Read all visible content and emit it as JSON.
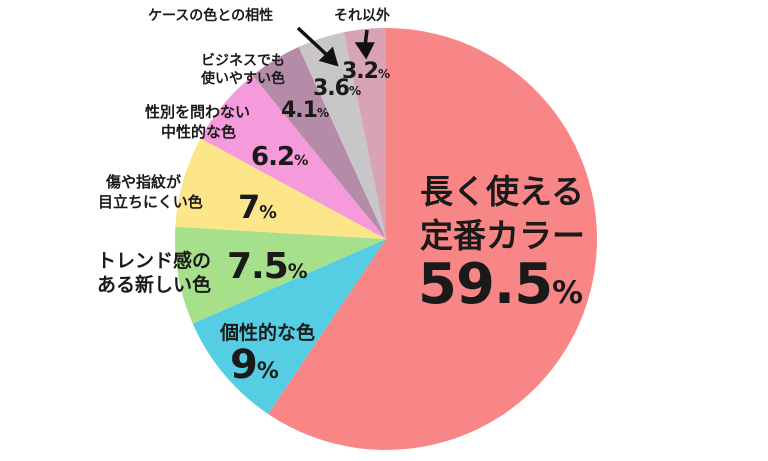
{
  "chart_data": {
    "type": "pie",
    "title": "",
    "start_angle_deg": 0,
    "direction": "clockwise",
    "slices": [
      {
        "label": "長く使える定番カラー",
        "lines": [
          "長く使える",
          "定番カラー"
        ],
        "value": 59.5,
        "value_text": "59.5",
        "color": "#f98686"
      },
      {
        "label": "個性的な色",
        "lines": [
          "個性的な色"
        ],
        "value": 9,
        "value_text": "9",
        "color": "#55cde3"
      },
      {
        "label": "トレンド感のある新しい色",
        "lines": [
          "トレンド感の",
          "ある新しい色"
        ],
        "value": 7.5,
        "value_text": "7.5",
        "color": "#a7e08a"
      },
      {
        "label": "傷や指紋が目立ちにくい色",
        "lines": [
          "傷や指紋が",
          "目立ちにくい色"
        ],
        "value": 7,
        "value_text": "7",
        "color": "#fde68a"
      },
      {
        "label": "性別を問わない中性的な色",
        "lines": [
          "性別を問わない",
          "中性的な色"
        ],
        "value": 6.2,
        "value_text": "6.2",
        "color": "#f59adb"
      },
      {
        "label": "ビジネスでも使いやすい色",
        "lines": [
          "ビジネスでも",
          "使いやすい色"
        ],
        "value": 4.1,
        "value_text": "4.1",
        "color": "#b48ca8"
      },
      {
        "label": "ケースの色との相性",
        "lines": [
          "ケースの色との相性"
        ],
        "value": 3.6,
        "value_text": "3.6",
        "color": "#c8c6c8"
      },
      {
        "label": "それ以外",
        "lines": [
          "それ以外"
        ],
        "value": 3.2,
        "value_text": "3.2",
        "color": "#d8a4b4"
      }
    ],
    "unit": "%",
    "legend": "none (labels placed on/near slices)"
  }
}
